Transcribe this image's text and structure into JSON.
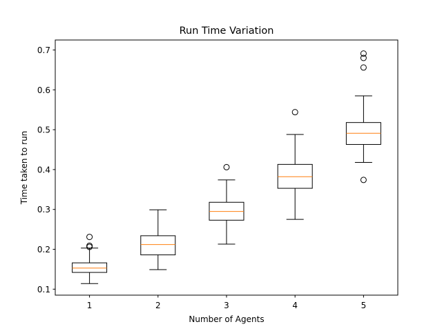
{
  "chart_data": {
    "type": "box",
    "title": "Run Time Variation",
    "xlabel": "Number of Agents",
    "ylabel": "Time taken to run",
    "categories": [
      "1",
      "2",
      "3",
      "4",
      "5"
    ],
    "ylim": [
      0.085,
      0.725
    ],
    "yticks": [
      0.1,
      0.2,
      0.3,
      0.4,
      0.5,
      0.6,
      0.7
    ],
    "ytick_labels": [
      "0.1",
      "0.2",
      "0.3",
      "0.4",
      "0.5",
      "0.6",
      "0.7"
    ],
    "grid": false,
    "boxes": [
      {
        "category": "1",
        "whisker_low": 0.114,
        "q1": 0.142,
        "median": 0.153,
        "q3": 0.166,
        "whisker_high": 0.203,
        "outliers": [
          0.206,
          0.209,
          0.231
        ]
      },
      {
        "category": "2",
        "whisker_low": 0.149,
        "q1": 0.186,
        "median": 0.212,
        "q3": 0.234,
        "whisker_high": 0.299,
        "outliers": []
      },
      {
        "category": "3",
        "whisker_low": 0.213,
        "q1": 0.273,
        "median": 0.295,
        "q3": 0.318,
        "whisker_high": 0.374,
        "outliers": [
          0.406
        ]
      },
      {
        "category": "4",
        "whisker_low": 0.275,
        "q1": 0.353,
        "median": 0.382,
        "q3": 0.413,
        "whisker_high": 0.488,
        "outliers": [
          0.544
        ]
      },
      {
        "category": "5",
        "whisker_low": 0.418,
        "q1": 0.463,
        "median": 0.491,
        "q3": 0.518,
        "whisker_high": 0.585,
        "outliers": [
          0.374,
          0.656,
          0.68,
          0.691
        ]
      }
    ],
    "colors": {
      "box": "#000000",
      "median": "#ff7f0e",
      "outlier": "#000000"
    }
  }
}
